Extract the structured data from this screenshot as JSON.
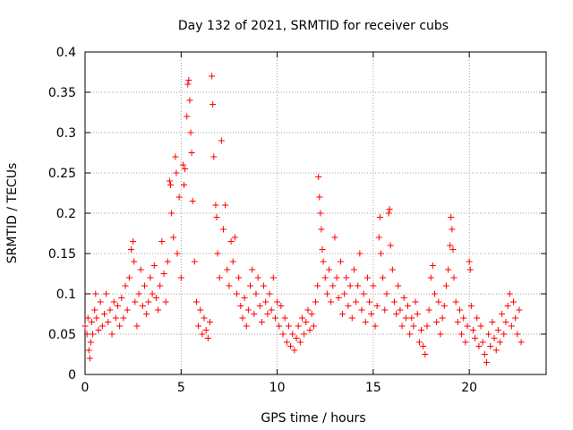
{
  "chart_data": {
    "type": "scatter",
    "title": "Day 132 of 2021, SRMTID for receiver cubs",
    "xlabel": "GPS time / hours",
    "ylabel": "SRMTID / TECUs",
    "xlim": [
      0,
      24
    ],
    "ylim": [
      0,
      0.4
    ],
    "xticks": [
      0,
      5,
      10,
      15,
      20
    ],
    "xtick_labels": [
      "0",
      "5",
      "10",
      "15",
      "20"
    ],
    "yticks": [
      0,
      0.05,
      0.1,
      0.15,
      0.2,
      0.25,
      0.3,
      0.35,
      0.4
    ],
    "ytick_labels": [
      "0",
      "0.05",
      "0.1",
      "0.15",
      "0.2",
      "0.25",
      "0.3",
      "0.35",
      "0.4"
    ],
    "grid": true,
    "marker": "plus",
    "color": "#ff0000",
    "series": [
      {
        "name": "SRMTID",
        "points": [
          [
            0.0,
            0.06
          ],
          [
            0.1,
            0.05
          ],
          [
            0.15,
            0.07
          ],
          [
            0.2,
            0.03
          ],
          [
            0.25,
            0.02
          ],
          [
            0.3,
            0.04
          ],
          [
            0.35,
            0.065
          ],
          [
            0.4,
            0.05
          ],
          [
            0.5,
            0.08
          ],
          [
            0.55,
            0.1
          ],
          [
            0.6,
            0.07
          ],
          [
            0.7,
            0.055
          ],
          [
            0.8,
            0.09
          ],
          [
            0.9,
            0.06
          ],
          [
            1.0,
            0.075
          ],
          [
            1.1,
            0.1
          ],
          [
            1.2,
            0.065
          ],
          [
            1.3,
            0.08
          ],
          [
            1.4,
            0.05
          ],
          [
            1.5,
            0.09
          ],
          [
            1.6,
            0.07
          ],
          [
            1.7,
            0.085
          ],
          [
            1.8,
            0.06
          ],
          [
            1.9,
            0.095
          ],
          [
            2.0,
            0.07
          ],
          [
            2.1,
            0.11
          ],
          [
            2.2,
            0.08
          ],
          [
            2.3,
            0.12
          ],
          [
            2.4,
            0.155
          ],
          [
            2.5,
            0.165
          ],
          [
            2.55,
            0.14
          ],
          [
            2.6,
            0.09
          ],
          [
            2.7,
            0.06
          ],
          [
            2.8,
            0.1
          ],
          [
            2.9,
            0.13
          ],
          [
            3.0,
            0.085
          ],
          [
            3.1,
            0.11
          ],
          [
            3.2,
            0.075
          ],
          [
            3.3,
            0.09
          ],
          [
            3.4,
            0.12
          ],
          [
            3.5,
            0.1
          ],
          [
            3.6,
            0.135
          ],
          [
            3.7,
            0.095
          ],
          [
            3.8,
            0.08
          ],
          [
            3.9,
            0.11
          ],
          [
            4.0,
            0.165
          ],
          [
            4.1,
            0.125
          ],
          [
            4.2,
            0.09
          ],
          [
            4.3,
            0.14
          ],
          [
            4.4,
            0.24
          ],
          [
            4.45,
            0.235
          ],
          [
            4.5,
            0.2
          ],
          [
            4.6,
            0.17
          ],
          [
            4.7,
            0.27
          ],
          [
            4.75,
            0.25
          ],
          [
            4.8,
            0.15
          ],
          [
            4.9,
            0.22
          ],
          [
            5.0,
            0.12
          ],
          [
            5.1,
            0.26
          ],
          [
            5.15,
            0.235
          ],
          [
            5.2,
            0.255
          ],
          [
            5.3,
            0.32
          ],
          [
            5.35,
            0.36
          ],
          [
            5.4,
            0.365
          ],
          [
            5.45,
            0.34
          ],
          [
            5.5,
            0.3
          ],
          [
            5.55,
            0.275
          ],
          [
            5.6,
            0.215
          ],
          [
            5.7,
            0.14
          ],
          [
            5.8,
            0.09
          ],
          [
            5.9,
            0.06
          ],
          [
            6.0,
            0.08
          ],
          [
            6.1,
            0.05
          ],
          [
            6.2,
            0.07
          ],
          [
            6.3,
            0.055
          ],
          [
            6.4,
            0.045
          ],
          [
            6.5,
            0.065
          ],
          [
            6.6,
            0.37
          ],
          [
            6.65,
            0.335
          ],
          [
            6.7,
            0.27
          ],
          [
            6.8,
            0.21
          ],
          [
            6.85,
            0.195
          ],
          [
            6.9,
            0.15
          ],
          [
            7.0,
            0.12
          ],
          [
            7.1,
            0.29
          ],
          [
            7.2,
            0.18
          ],
          [
            7.3,
            0.21
          ],
          [
            7.4,
            0.13
          ],
          [
            7.5,
            0.11
          ],
          [
            7.6,
            0.165
          ],
          [
            7.7,
            0.14
          ],
          [
            7.8,
            0.17
          ],
          [
            7.9,
            0.1
          ],
          [
            8.0,
            0.12
          ],
          [
            8.1,
            0.085
          ],
          [
            8.2,
            0.07
          ],
          [
            8.3,
            0.095
          ],
          [
            8.4,
            0.06
          ],
          [
            8.5,
            0.08
          ],
          [
            8.6,
            0.11
          ],
          [
            8.7,
            0.13
          ],
          [
            8.8,
            0.075
          ],
          [
            8.9,
            0.1
          ],
          [
            9.0,
            0.12
          ],
          [
            9.1,
            0.085
          ],
          [
            9.2,
            0.065
          ],
          [
            9.3,
            0.11
          ],
          [
            9.4,
            0.09
          ],
          [
            9.5,
            0.075
          ],
          [
            9.6,
            0.1
          ],
          [
            9.7,
            0.08
          ],
          [
            9.8,
            0.12
          ],
          [
            9.9,
            0.07
          ],
          [
            10.0,
            0.09
          ],
          [
            10.1,
            0.06
          ],
          [
            10.2,
            0.085
          ],
          [
            10.3,
            0.05
          ],
          [
            10.4,
            0.07
          ],
          [
            10.5,
            0.04
          ],
          [
            10.6,
            0.06
          ],
          [
            10.7,
            0.035
          ],
          [
            10.8,
            0.05
          ],
          [
            10.9,
            0.03
          ],
          [
            11.0,
            0.045
          ],
          [
            11.1,
            0.06
          ],
          [
            11.2,
            0.04
          ],
          [
            11.3,
            0.07
          ],
          [
            11.4,
            0.05
          ],
          [
            11.5,
            0.065
          ],
          [
            11.6,
            0.08
          ],
          [
            11.7,
            0.055
          ],
          [
            11.8,
            0.075
          ],
          [
            11.9,
            0.06
          ],
          [
            12.0,
            0.09
          ],
          [
            12.1,
            0.11
          ],
          [
            12.15,
            0.245
          ],
          [
            12.2,
            0.22
          ],
          [
            12.25,
            0.2
          ],
          [
            12.3,
            0.18
          ],
          [
            12.35,
            0.155
          ],
          [
            12.4,
            0.14
          ],
          [
            12.5,
            0.12
          ],
          [
            12.6,
            0.1
          ],
          [
            12.7,
            0.13
          ],
          [
            12.8,
            0.09
          ],
          [
            12.9,
            0.11
          ],
          [
            13.0,
            0.17
          ],
          [
            13.1,
            0.12
          ],
          [
            13.2,
            0.095
          ],
          [
            13.3,
            0.14
          ],
          [
            13.4,
            0.075
          ],
          [
            13.5,
            0.1
          ],
          [
            13.6,
            0.12
          ],
          [
            13.7,
            0.085
          ],
          [
            13.8,
            0.11
          ],
          [
            13.9,
            0.07
          ],
          [
            14.0,
            0.13
          ],
          [
            14.1,
            0.09
          ],
          [
            14.2,
            0.11
          ],
          [
            14.3,
            0.15
          ],
          [
            14.4,
            0.08
          ],
          [
            14.5,
            0.1
          ],
          [
            14.6,
            0.065
          ],
          [
            14.7,
            0.12
          ],
          [
            14.8,
            0.09
          ],
          [
            14.9,
            0.075
          ],
          [
            15.0,
            0.11
          ],
          [
            15.1,
            0.06
          ],
          [
            15.2,
            0.085
          ],
          [
            15.3,
            0.17
          ],
          [
            15.35,
            0.195
          ],
          [
            15.4,
            0.15
          ],
          [
            15.5,
            0.12
          ],
          [
            15.6,
            0.08
          ],
          [
            15.7,
            0.1
          ],
          [
            15.8,
            0.2
          ],
          [
            15.85,
            0.205
          ],
          [
            15.9,
            0.16
          ],
          [
            16.0,
            0.13
          ],
          [
            16.1,
            0.09
          ],
          [
            16.2,
            0.075
          ],
          [
            16.3,
            0.11
          ],
          [
            16.4,
            0.08
          ],
          [
            16.5,
            0.06
          ],
          [
            16.6,
            0.095
          ],
          [
            16.7,
            0.07
          ],
          [
            16.8,
            0.085
          ],
          [
            16.9,
            0.05
          ],
          [
            17.0,
            0.07
          ],
          [
            17.1,
            0.06
          ],
          [
            17.2,
            0.09
          ],
          [
            17.3,
            0.075
          ],
          [
            17.4,
            0.04
          ],
          [
            17.5,
            0.055
          ],
          [
            17.6,
            0.035
          ],
          [
            17.7,
            0.025
          ],
          [
            17.8,
            0.06
          ],
          [
            17.9,
            0.08
          ],
          [
            18.0,
            0.12
          ],
          [
            18.1,
            0.135
          ],
          [
            18.2,
            0.1
          ],
          [
            18.3,
            0.065
          ],
          [
            18.4,
            0.09
          ],
          [
            18.5,
            0.05
          ],
          [
            18.6,
            0.07
          ],
          [
            18.7,
            0.085
          ],
          [
            18.8,
            0.11
          ],
          [
            18.9,
            0.13
          ],
          [
            19.0,
            0.16
          ],
          [
            19.05,
            0.195
          ],
          [
            19.1,
            0.18
          ],
          [
            19.15,
            0.155
          ],
          [
            19.2,
            0.12
          ],
          [
            19.3,
            0.09
          ],
          [
            19.4,
            0.065
          ],
          [
            19.5,
            0.08
          ],
          [
            19.6,
            0.05
          ],
          [
            19.7,
            0.07
          ],
          [
            19.8,
            0.04
          ],
          [
            19.9,
            0.06
          ],
          [
            20.0,
            0.14
          ],
          [
            20.05,
            0.13
          ],
          [
            20.1,
            0.085
          ],
          [
            20.2,
            0.055
          ],
          [
            20.3,
            0.045
          ],
          [
            20.4,
            0.07
          ],
          [
            20.5,
            0.035
          ],
          [
            20.6,
            0.06
          ],
          [
            20.7,
            0.04
          ],
          [
            20.8,
            0.025
          ],
          [
            20.9,
            0.015
          ],
          [
            21.0,
            0.05
          ],
          [
            21.1,
            0.035
          ],
          [
            21.2,
            0.065
          ],
          [
            21.3,
            0.045
          ],
          [
            21.4,
            0.03
          ],
          [
            21.5,
            0.055
          ],
          [
            21.6,
            0.04
          ],
          [
            21.7,
            0.075
          ],
          [
            21.8,
            0.05
          ],
          [
            21.9,
            0.065
          ],
          [
            22.0,
            0.085
          ],
          [
            22.1,
            0.1
          ],
          [
            22.2,
            0.06
          ],
          [
            22.3,
            0.09
          ],
          [
            22.4,
            0.07
          ],
          [
            22.5,
            0.05
          ],
          [
            22.6,
            0.08
          ],
          [
            22.7,
            0.04
          ]
        ]
      }
    ]
  }
}
